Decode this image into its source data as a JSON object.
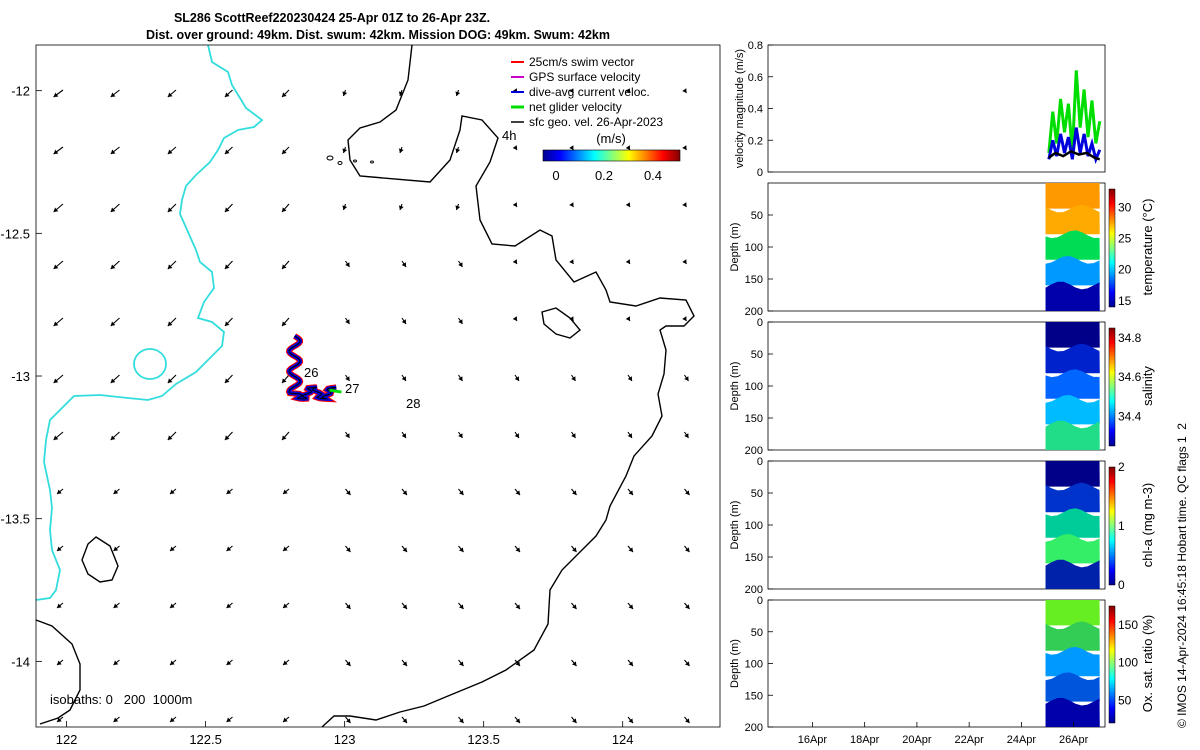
{
  "header": {
    "line1": "SL286 ScottReef220230424 25-Apr 01Z to 26-Apr 23Z.",
    "line2": "Dist. over ground: 49km. Dist. swum: 42km. Mission DOG: 49km. Swum: 42km"
  },
  "colors": {
    "coastline": "#33dddd",
    "isobath": "#000000",
    "swim_vector": "#ff0000",
    "gps_velocity": "#cc00cc",
    "dive_avg_current": "#0000dd",
    "net_glider_velocity": "#00dd00",
    "sfc_geo_vel": "#000000"
  },
  "chart_data": [
    {
      "type": "scatter",
      "subtype": "map",
      "x_ticks": [
        "122",
        "122.5",
        "123",
        "123.5",
        "124"
      ],
      "y_ticks": [
        "-12",
        "-12.5",
        "-13",
        "-13.5",
        "-14"
      ],
      "xlim": [
        121.89,
        124.35
      ],
      "ylim": [
        -14.23,
        -11.84
      ],
      "legend": [
        "25cm/s swim vector",
        "GPS surface velocity",
        "dive-avg current veloc.",
        "net glider velocity",
        "sfc geo. vel. 26-Apr-2023"
      ],
      "legend_position": "top-right",
      "colorbar": {
        "label": "(m/s)",
        "ticks": [
          "0",
          "0.2",
          "0.4"
        ],
        "range": [
          0,
          0.5
        ],
        "colormap": "jet"
      },
      "annotations": [
        {
          "text": "4h",
          "lon": 123.59,
          "lat": -12.17
        },
        {
          "text": "26",
          "lon": 122.81,
          "lat": -13.0
        },
        {
          "text": "27",
          "lon": 122.99,
          "lat": -13.06
        },
        {
          "text": "28",
          "lon": 123.22,
          "lat": -13.11
        }
      ],
      "isobath_label": "isobaths: 0   200  1000m",
      "geo_velocity_direction": "mostly southwest to south",
      "glider_track_region": {
        "lon": [
          122.78,
          122.98
        ],
        "lat": [
          -13.1,
          -12.84
        ]
      }
    },
    {
      "type": "line",
      "ylabel": "velocity magnitude (m/s)",
      "ylim": [
        0,
        0.8
      ],
      "y_ticks": [
        "0",
        "0.2",
        "0.4",
        "0.6",
        "0.8"
      ],
      "xlim_days_label": "14-Apr to 27-Apr",
      "series": [
        {
          "color": "#00dd00",
          "x": [
            25.05,
            25.2,
            25.35,
            25.5,
            25.65,
            25.8,
            25.95,
            26.1,
            26.25,
            26.4,
            26.55,
            26.7,
            26.85,
            27.0
          ],
          "values": [
            0.12,
            0.38,
            0.18,
            0.46,
            0.25,
            0.43,
            0.12,
            0.64,
            0.28,
            0.52,
            0.22,
            0.45,
            0.18,
            0.32
          ]
        },
        {
          "color": "#0000dd",
          "x": [
            25.05,
            25.2,
            25.35,
            25.5,
            25.65,
            25.8,
            25.95,
            26.1,
            26.25,
            26.4,
            26.55,
            26.7,
            26.85,
            27.0
          ],
          "values": [
            0.08,
            0.2,
            0.1,
            0.24,
            0.12,
            0.22,
            0.08,
            0.28,
            0.12,
            0.24,
            0.1,
            0.18,
            0.08,
            0.14
          ]
        },
        {
          "color": "#000000",
          "x": [
            25.05,
            25.3,
            25.6,
            25.9,
            26.2,
            26.5,
            26.8,
            27.0
          ],
          "values": [
            0.09,
            0.12,
            0.1,
            0.13,
            0.11,
            0.12,
            0.09,
            0.08
          ]
        }
      ]
    },
    {
      "type": "heatmap",
      "ylabel": "Depth (m)",
      "clabel": "temperature (°C)",
      "ylim": [
        0,
        200
      ],
      "y_ticks": [
        "50",
        "100",
        "150",
        "200"
      ],
      "cticks": [
        "15",
        "20",
        "25",
        "30"
      ],
      "clim": [
        14,
        33
      ],
      "data_x_range_days": [
        25.0,
        27.0
      ],
      "colors": [
        "#ff9900",
        "#ffaa00",
        "#00dd55",
        "#0099ff",
        "#0000aa"
      ]
    },
    {
      "type": "heatmap",
      "ylabel": "Depth (m)",
      "clabel": "salinity",
      "ylim": [
        0,
        200
      ],
      "y_ticks": [
        "0",
        "50",
        "100",
        "150",
        "200"
      ],
      "cticks": [
        "34.4",
        "34.6",
        "34.8"
      ],
      "clim": [
        34.25,
        34.85
      ],
      "data_x_range_days": [
        25.0,
        27.0
      ],
      "colors": [
        "#000088",
        "#0022cc",
        "#0066ff",
        "#00bbff",
        "#22dd88"
      ]
    },
    {
      "type": "heatmap",
      "ylabel": "Depth (m)",
      "clabel": "chl-a (mg m-3)",
      "ylim": [
        0,
        200
      ],
      "y_ticks": [
        "0",
        "50",
        "100",
        "150",
        "200"
      ],
      "cticks": [
        "0",
        "1",
        "2"
      ],
      "clim": [
        0,
        2
      ],
      "data_x_range_days": [
        25.0,
        27.0
      ],
      "colors": [
        "#000088",
        "#0033cc",
        "#00cc99",
        "#33ee66",
        "#0022aa"
      ]
    },
    {
      "type": "heatmap",
      "ylabel": "Depth (m)",
      "clabel": "Ox. sat. ratio (%)",
      "ylim": [
        0,
        200
      ],
      "y_ticks": [
        "0",
        "50",
        "100",
        "150",
        "200"
      ],
      "cticks": [
        "50",
        "100",
        "150"
      ],
      "clim": [
        20,
        175
      ],
      "x_ticks": [
        "16Apr",
        "18Apr",
        "20Apr",
        "22Apr",
        "24Apr",
        "26Apr"
      ],
      "x_tick_days": [
        16,
        18,
        20,
        22,
        24,
        26
      ],
      "xlim_days": [
        14.3,
        27.2
      ],
      "data_x_range_days": [
        25.0,
        27.0
      ],
      "colors": [
        "#66ee22",
        "#33cc55",
        "#0099ff",
        "#0055dd",
        "#0000aa"
      ]
    }
  ],
  "footer": {
    "credit": "© IMOS 14-Apr-2024 16:45:18 Hobart time. QC flags 1  2"
  }
}
